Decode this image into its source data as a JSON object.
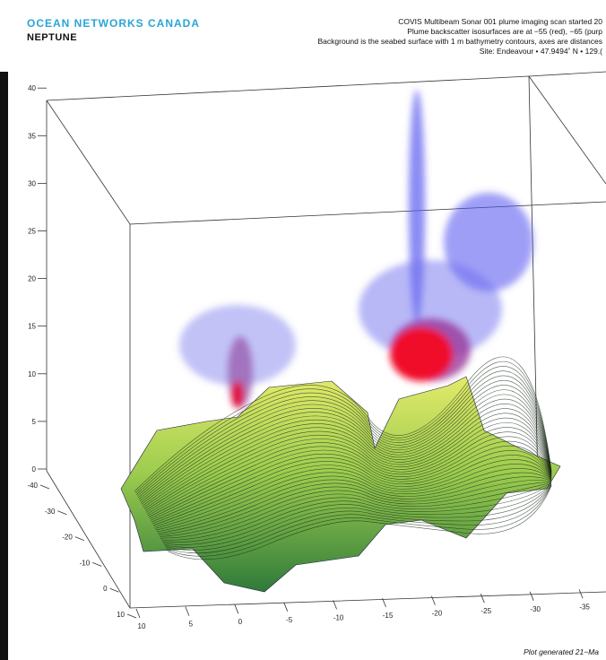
{
  "header": {
    "brand": "OCEAN NETWORKS CANADA",
    "subbrand": "NEPTUNE",
    "lines": [
      "COVIS Multibeam Sonar 001 plume imaging scan started 20",
      "Plume backscatter isosurfaces are at −55 (red), −65 (purp",
      "Background is the seabed surface with 1 m bathymetry contours, axes are distances",
      "Site: Endeavour  •  47.9494˚ N  •  129.("
    ]
  },
  "axes": {
    "z_ticks": [
      0,
      5,
      10,
      15,
      20,
      25,
      30,
      35,
      40
    ],
    "y_ticks": [
      -40,
      -30,
      -20,
      -10,
      0,
      10
    ],
    "x_ticks": [
      10,
      5,
      0,
      -5,
      -10,
      -15,
      -20,
      -25,
      -30,
      -35
    ]
  },
  "footer": "Plot generated 21−Ma"
}
